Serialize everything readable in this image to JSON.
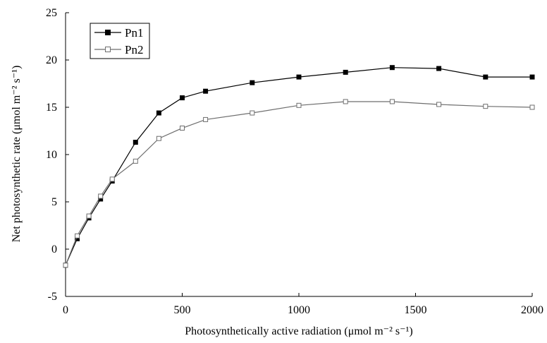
{
  "chart_data": {
    "type": "line",
    "title": "",
    "xlabel": "Photosynthetically active  radiation (μmol m⁻² s⁻¹)",
    "ylabel": "Net photosynthetic rate (μmol m⁻² s⁻¹)",
    "xlim": [
      0,
      2000
    ],
    "ylim": [
      -5,
      25
    ],
    "xticks": [
      0,
      500,
      1000,
      1500,
      2000
    ],
    "yticks": [
      -5,
      0,
      5,
      10,
      15,
      20,
      25
    ],
    "grid": false,
    "legend_position": "top-left",
    "x": [
      0,
      50,
      100,
      150,
      200,
      300,
      400,
      500,
      600,
      800,
      1000,
      1200,
      1400,
      1600,
      1800,
      2000
    ],
    "series": [
      {
        "name": "Pn1",
        "marker": "filled-square",
        "color": "#000000",
        "values": [
          -1.7,
          1.1,
          3.3,
          5.3,
          7.2,
          11.3,
          14.4,
          16.0,
          16.7,
          17.6,
          18.2,
          18.7,
          19.2,
          19.1,
          18.2,
          18.2
        ]
      },
      {
        "name": "Pn2",
        "marker": "open-square",
        "color": "#6e6e6e",
        "values": [
          -1.7,
          1.4,
          3.5,
          5.6,
          7.4,
          9.3,
          11.7,
          12.8,
          13.7,
          14.4,
          15.2,
          15.6,
          15.6,
          15.3,
          15.1,
          15.0
        ]
      }
    ]
  }
}
